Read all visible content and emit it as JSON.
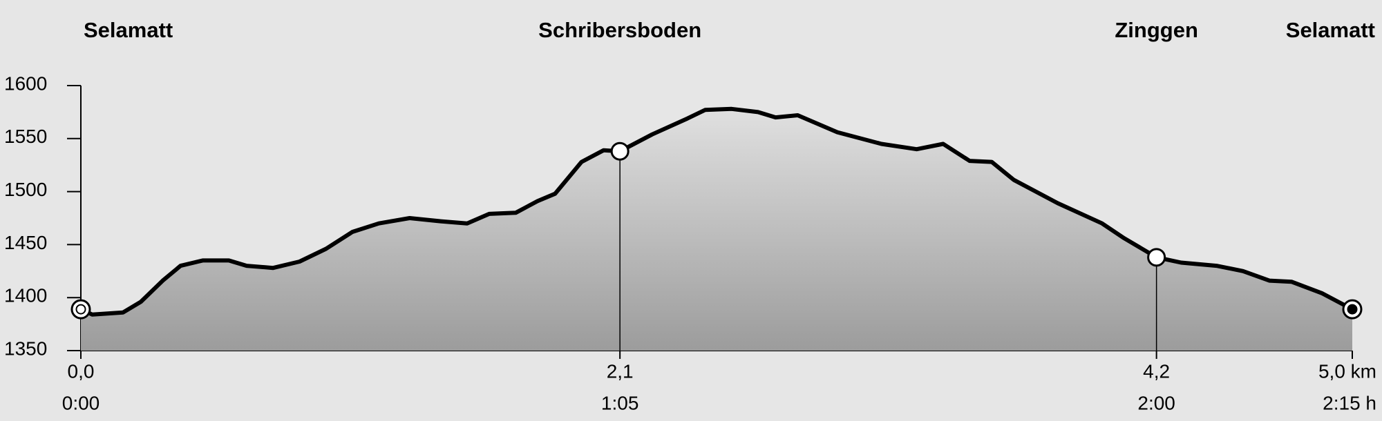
{
  "chart_data": {
    "type": "area",
    "waypoints": [
      {
        "name": "Selamatt",
        "x": 0,
        "elevation": 1389
      },
      {
        "name": "Schribersboden",
        "x": 2.12,
        "elevation": 1538
      },
      {
        "name": "Zinggen",
        "x": 4.23,
        "elevation": 1438
      },
      {
        "name": "Selamatt",
        "x": 5.0,
        "elevation": 1389
      }
    ],
    "x": [
      0,
      0.045,
      0.166,
      0.236,
      0.322,
      0.392,
      0.479,
      0.582,
      0.652,
      0.756,
      0.86,
      0.964,
      1.068,
      1.172,
      1.293,
      1.415,
      1.519,
      1.606,
      1.71,
      1.796,
      1.865,
      1.969,
      2.056,
      2.12,
      2.247,
      2.386,
      2.455,
      2.559,
      2.663,
      2.732,
      2.819,
      2.975,
      3.148,
      3.287,
      3.391,
      3.495,
      3.582,
      3.669,
      3.842,
      4.016,
      4.103,
      4.23,
      4.327,
      4.466,
      4.57,
      4.674,
      4.761,
      4.882,
      5.0
    ],
    "values": [
      1389,
      1384,
      1386,
      1396,
      1416,
      1430,
      1435,
      1435,
      1430,
      1428,
      1434,
      1446,
      1462,
      1470,
      1475,
      1472,
      1470,
      1479,
      1480,
      1491,
      1498,
      1528,
      1539,
      1538,
      1554,
      1569,
      1577,
      1578,
      1575,
      1570,
      1572,
      1556,
      1545,
      1540,
      1545,
      1529,
      1528,
      1511,
      1489,
      1470,
      1456,
      1438,
      1433,
      1430,
      1425,
      1416,
      1415,
      1404,
      1389
    ],
    "color": "#000000",
    "xlim": [
      0,
      5.0
    ],
    "ylim": [
      1350,
      1600
    ],
    "yticks": [
      1350,
      1400,
      1450,
      1500,
      1550,
      1600
    ],
    "xticks": [
      {
        "value": 0,
        "label": "0,0"
      },
      {
        "value": 2.12,
        "label": "2,1"
      },
      {
        "value": 4.23,
        "label": "4,2"
      },
      {
        "value": 5.0,
        "label": "5,0 km"
      }
    ],
    "time_labels": [
      "0:00",
      "1:05",
      "2:00",
      "2:15 h"
    ]
  }
}
